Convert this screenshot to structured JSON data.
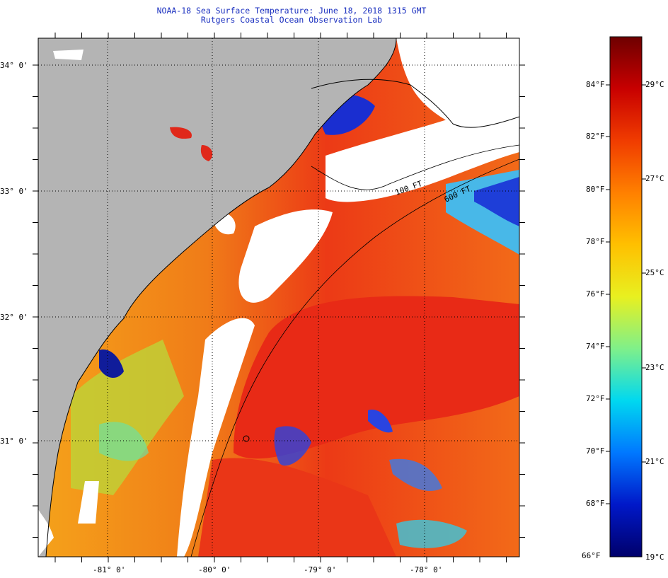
{
  "title": "NOAA-18 Sea Surface Temperature:  June 18, 2018 1315 GMT",
  "subtitle": "Rutgers Coastal Ocean Observation Lab",
  "map": {
    "lat_labels": [
      "34° 0'",
      "33° 0'",
      "32° 0'",
      "31° 0'"
    ],
    "lon_labels": [
      "-81° 0'",
      "-80° 0'",
      "-79° 0'",
      "-78° 0'"
    ],
    "isobath_labels": [
      "100 FT",
      "600 FT"
    ],
    "colors": {
      "land": "#b4b4b4",
      "cloud": "#ffffff",
      "warm": "#e8261a",
      "coastline": "#000000"
    }
  },
  "colorbar": {
    "fahrenheit_labels": [
      "84°F",
      "82°F",
      "80°F",
      "78°F",
      "76°F",
      "74°F",
      "72°F",
      "70°F",
      "68°F",
      "66°F"
    ],
    "celsius_labels": [
      "29°C",
      "27°C",
      "25°C",
      "23°C",
      "21°C",
      "19°C"
    ],
    "stops": [
      "#00006b",
      "#0018c8",
      "#0078ff",
      "#00d8f0",
      "#7ff08a",
      "#e8f020",
      "#ffc000",
      "#ff8000",
      "#f03c00",
      "#c80000",
      "#6e0000"
    ]
  }
}
